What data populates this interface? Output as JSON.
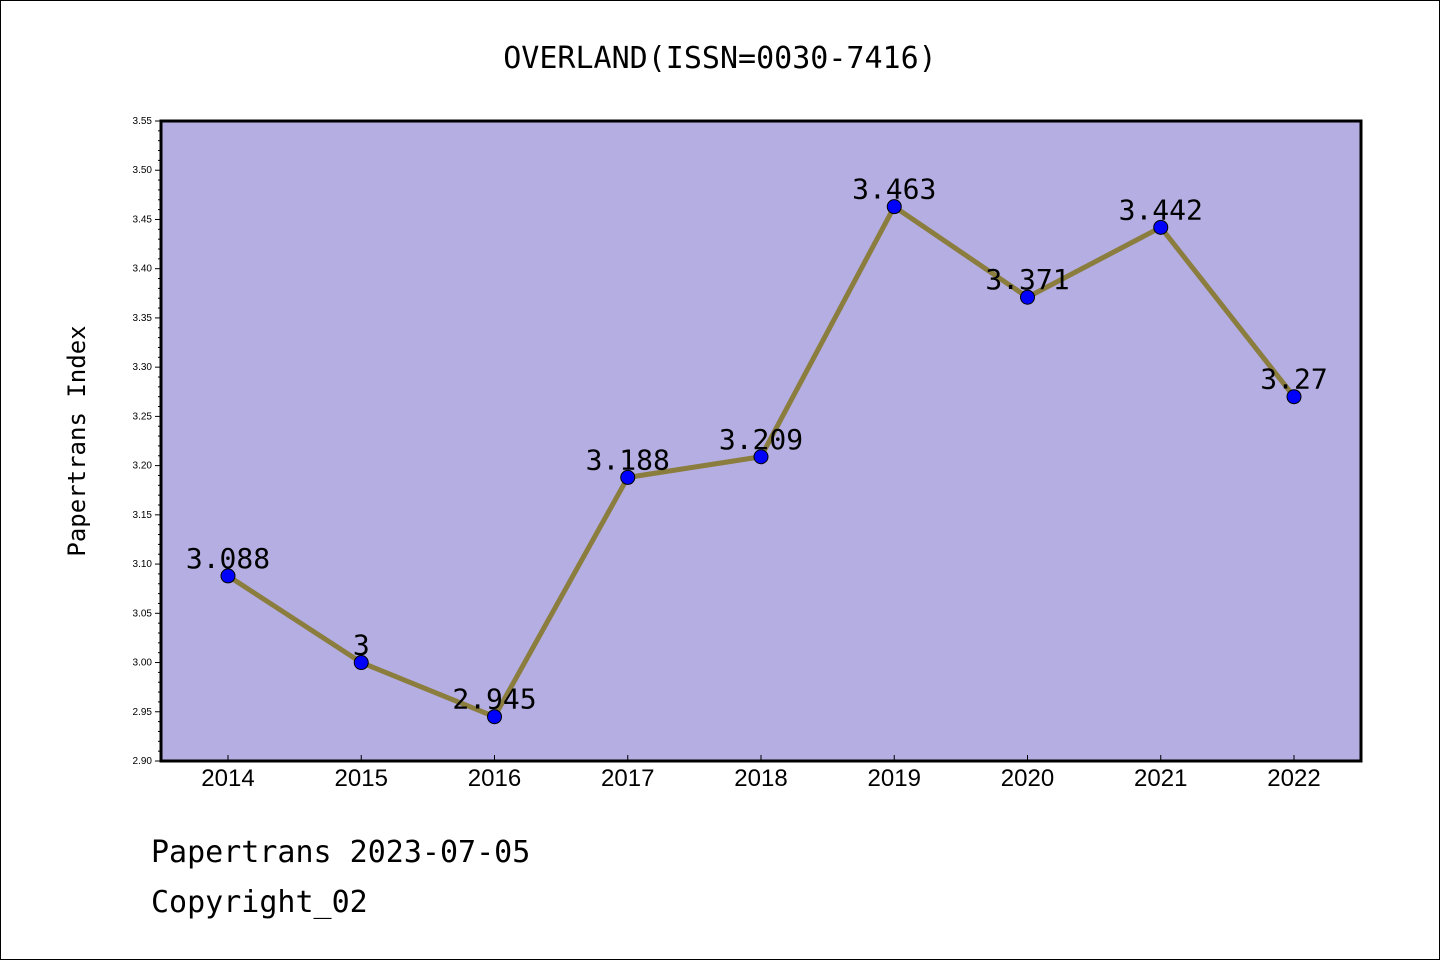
{
  "chart_data": {
    "type": "line",
    "title": "OVERLAND(ISSN=0030-7416)",
    "xlabel": "",
    "ylabel": "Papertrans Index",
    "categories": [
      "2014",
      "2015",
      "2016",
      "2017",
      "2018",
      "2019",
      "2020",
      "2021",
      "2022"
    ],
    "series": [
      {
        "values": [
          3.088,
          3.0,
          2.945,
          3.188,
          3.209,
          3.463,
          3.371,
          3.442,
          3.27
        ],
        "data_labels": [
          "3.088",
          "3",
          "2.945",
          "3.188",
          "3.209",
          "3.463",
          "3.371",
          "3.442",
          "3.27"
        ]
      }
    ],
    "ylim": [
      2.9,
      3.55
    ],
    "y_ticks": [
      "2.90",
      "2.95",
      "3.00",
      "3.05",
      "3.10",
      "3.15",
      "3.20",
      "3.25",
      "3.30",
      "3.35",
      "3.40",
      "3.45",
      "3.50",
      "3.55"
    ],
    "grid": false,
    "colors": {
      "plot_background": "#b4aee2",
      "line": "#8b7d3e",
      "marker": "#0000ff"
    }
  },
  "footer": {
    "line1": "Papertrans 2023-07-05",
    "line2": "Copyright_02"
  }
}
